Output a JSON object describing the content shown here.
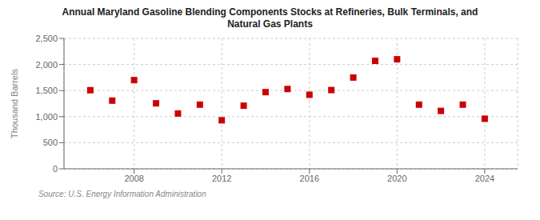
{
  "chart_data": {
    "type": "scatter",
    "title": "Annual Maryland Gasoline Blending Components Stocks at Refineries, Bulk Terminals, and\nNatural Gas Plants",
    "y_label": "Thousand Barrels",
    "annotation": "Source: U.S. Energy Information Administration",
    "x": [
      2006,
      2007,
      2008,
      2009,
      2010,
      2011,
      2012,
      2013,
      2014,
      2015,
      2016,
      2017,
      2018,
      2019,
      2020,
      2021,
      2022,
      2023,
      2024
    ],
    "values": [
      1507,
      1307,
      1700,
      1255,
      1060,
      1230,
      930,
      1210,
      1470,
      1530,
      1420,
      1510,
      1750,
      2070,
      2100,
      1230,
      1110,
      1230,
      960
    ],
    "color": "#cc0000",
    "marker": "square",
    "xlim": [
      2004.8,
      2025.5
    ],
    "xticks": [
      2008,
      2012,
      2016,
      2020,
      2024
    ],
    "ylim": [
      0,
      2500
    ],
    "yticks": [
      0,
      500,
      {
        "value": 1000,
        "label": "1,000"
      },
      {
        "value": 1500,
        "label": "1,500"
      },
      {
        "value": 2000,
        "label": "2,000"
      },
      {
        "value": 2500,
        "label": "2,500"
      }
    ],
    "grid": true
  }
}
